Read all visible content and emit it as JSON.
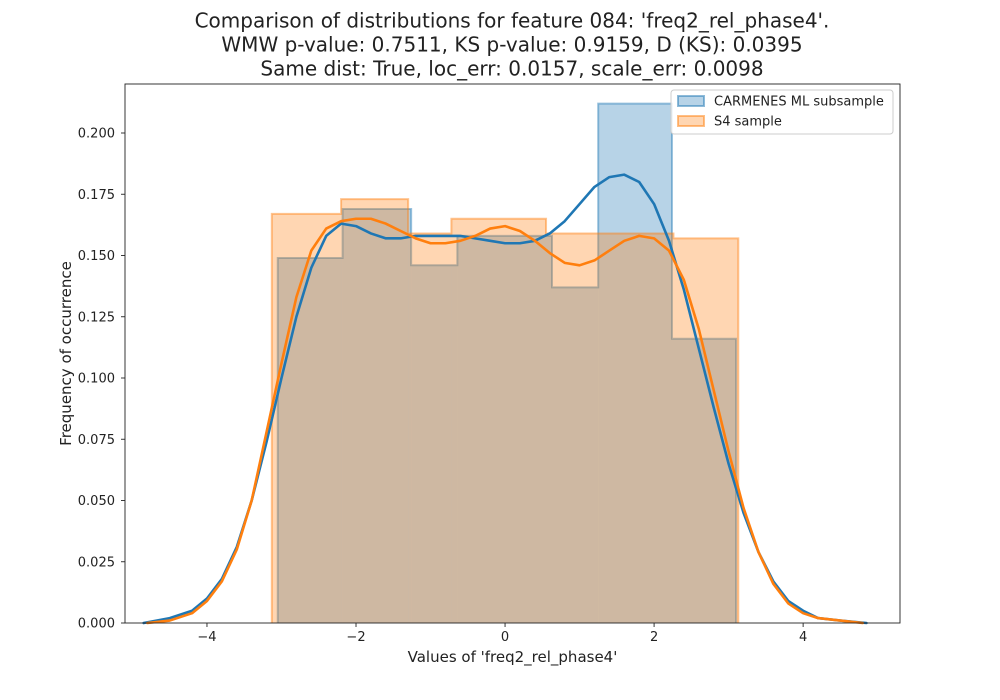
{
  "chart_data": {
    "type": "histogram",
    "title_lines": [
      "Comparison of distributions for feature 084: 'freq2_rel_phase4'.",
      "WMW p-value: 0.7511, KS p-value: 0.9159, D (KS): 0.0395",
      "Same dist: True, loc_err: 0.0157, scale_err: 0.0098"
    ],
    "xlabel": "Values of 'freq2_rel_phase4'",
    "ylabel": "Frequency of occurrence",
    "xlim": [
      -5.1,
      5.3
    ],
    "ylim": [
      0.0,
      0.22
    ],
    "xticks": [
      -4,
      -2,
      0,
      2,
      4
    ],
    "xtick_labels": [
      "−4",
      "−2",
      "0",
      "2",
      "4"
    ],
    "yticks": [
      0.0,
      0.025,
      0.05,
      0.075,
      0.1,
      0.125,
      0.15,
      0.175,
      0.2
    ],
    "ytick_labels": [
      "0.000",
      "0.025",
      "0.050",
      "0.075",
      "0.100",
      "0.125",
      "0.150",
      "0.175",
      "0.200"
    ],
    "legend_position": "top-right",
    "series": [
      {
        "name": "CARMENES ML subsample",
        "color": "#1f77b4",
        "bin_edges": [
          -3.05,
          -2.18,
          -1.26,
          -0.64,
          0.63,
          1.25,
          2.24,
          3.1
        ],
        "values": [
          0.149,
          0.169,
          0.146,
          0.158,
          0.137,
          0.212,
          0.116
        ],
        "kde_x": [
          -4.85,
          -4.5,
          -4.2,
          -4.0,
          -3.8,
          -3.6,
          -3.4,
          -3.2,
          -3.0,
          -2.8,
          -2.6,
          -2.4,
          -2.2,
          -2.0,
          -1.8,
          -1.6,
          -1.4,
          -1.2,
          -1.0,
          -0.8,
          -0.6,
          -0.4,
          -0.2,
          0.0,
          0.2,
          0.4,
          0.6,
          0.8,
          1.0,
          1.2,
          1.4,
          1.6,
          1.8,
          2.0,
          2.2,
          2.4,
          2.6,
          2.8,
          3.0,
          3.2,
          3.4,
          3.6,
          3.8,
          4.0,
          4.2,
          4.5,
          4.85
        ],
        "kde_y": [
          0.0,
          0.002,
          0.005,
          0.01,
          0.018,
          0.031,
          0.05,
          0.074,
          0.1,
          0.125,
          0.145,
          0.158,
          0.163,
          0.162,
          0.159,
          0.157,
          0.157,
          0.158,
          0.158,
          0.158,
          0.158,
          0.157,
          0.156,
          0.155,
          0.155,
          0.156,
          0.159,
          0.164,
          0.171,
          0.178,
          0.182,
          0.183,
          0.18,
          0.171,
          0.156,
          0.136,
          0.112,
          0.088,
          0.065,
          0.045,
          0.029,
          0.017,
          0.009,
          0.005,
          0.002,
          0.001,
          0.0
        ]
      },
      {
        "name": "S4 sample",
        "color": "#ff7f0e",
        "bin_edges": [
          -3.13,
          -2.2,
          -1.3,
          -0.72,
          0.55,
          1.22,
          2.26,
          3.13
        ],
        "values": [
          0.167,
          0.173,
          0.159,
          0.165,
          0.159,
          0.159,
          0.157
        ],
        "kde_x": [
          -4.8,
          -4.5,
          -4.2,
          -4.0,
          -3.8,
          -3.6,
          -3.4,
          -3.2,
          -3.0,
          -2.8,
          -2.6,
          -2.4,
          -2.2,
          -2.0,
          -1.8,
          -1.6,
          -1.4,
          -1.2,
          -1.0,
          -0.8,
          -0.6,
          -0.4,
          -0.2,
          0.0,
          0.2,
          0.4,
          0.6,
          0.8,
          1.0,
          1.2,
          1.4,
          1.6,
          1.8,
          2.0,
          2.2,
          2.4,
          2.6,
          2.8,
          3.0,
          3.2,
          3.4,
          3.6,
          3.8,
          4.0,
          4.2,
          4.5,
          4.8
        ],
        "kde_y": [
          0.0,
          0.001,
          0.004,
          0.009,
          0.017,
          0.03,
          0.05,
          0.078,
          0.106,
          0.133,
          0.152,
          0.161,
          0.164,
          0.165,
          0.165,
          0.163,
          0.16,
          0.157,
          0.155,
          0.155,
          0.156,
          0.158,
          0.161,
          0.162,
          0.16,
          0.156,
          0.151,
          0.147,
          0.146,
          0.148,
          0.152,
          0.156,
          0.158,
          0.157,
          0.152,
          0.14,
          0.12,
          0.095,
          0.07,
          0.047,
          0.029,
          0.016,
          0.008,
          0.004,
          0.002,
          0.001,
          0.0
        ]
      }
    ]
  }
}
